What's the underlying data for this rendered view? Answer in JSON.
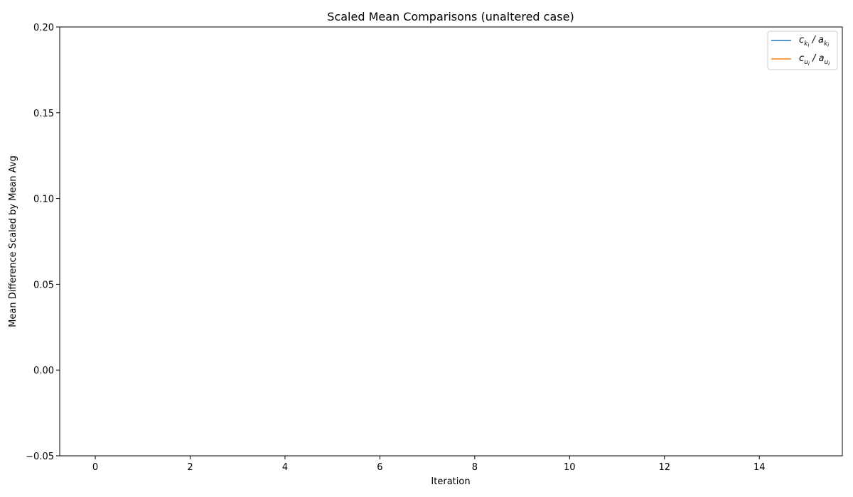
{
  "chart_data": {
    "type": "line",
    "title": "Scaled Mean Comparisons (unaltered case)",
    "xlabel": "Iteration",
    "ylabel": "Mean Difference Scaled by Mean Avg",
    "xlim": [
      -0.75,
      15.75
    ],
    "ylim": [
      -0.05,
      0.2
    ],
    "x_ticks": [
      0,
      2,
      4,
      6,
      8,
      10,
      12,
      14
    ],
    "x_tick_labels": [
      "0",
      "2",
      "4",
      "6",
      "8",
      "10",
      "12",
      "14"
    ],
    "y_ticks": [
      -0.05,
      0.0,
      0.05,
      0.1,
      0.15,
      0.2
    ],
    "y_tick_labels": [
      "−0.05",
      "0.00",
      "0.05",
      "0.10",
      "0.15",
      "0.20"
    ],
    "grid": false,
    "legend_position": "top-right",
    "series": [
      {
        "name": "c_{k_i} / a_{k_i}",
        "legend_parts": {
          "a": "c",
          "a_sub": "k",
          "a_subsub": "i",
          "sep": " / ",
          "b": "a",
          "b_sub": "k",
          "b_subsub": "i"
        },
        "color": "#1f77b4",
        "x": [],
        "values": []
      },
      {
        "name": "c_{u_i} / a_{u_i}",
        "legend_parts": {
          "a": "c",
          "a_sub": "u",
          "a_subsub": "i",
          "sep": " / ",
          "b": "a",
          "b_sub": "u",
          "b_subsub": "i"
        },
        "color": "#ff7f0e",
        "x": [],
        "values": []
      }
    ]
  }
}
